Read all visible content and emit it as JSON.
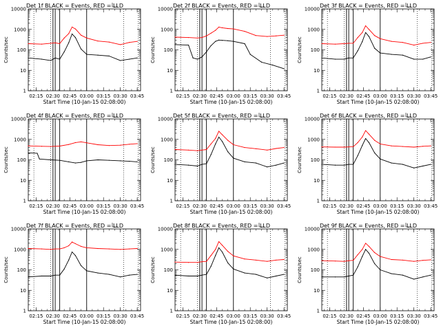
{
  "chart_data": [
    {
      "type": "line",
      "title": "Det 1f BLACK = Events, RED = LLD",
      "xlabel": "Start Time (10-Jan-15 02:08:00)",
      "ylabel": "Counts/sec",
      "yscale": "log",
      "ylim": [
        1,
        10000
      ],
      "xlim": [
        "02:08",
        "03:48"
      ],
      "ytick_labels": [
        "1",
        "10",
        "100",
        "1000",
        "10000"
      ],
      "xtick_labels": [
        "02:15",
        "02:30",
        "02:45",
        "03:00",
        "03:15",
        "03:30",
        "03:45"
      ],
      "dotted_lines": [
        "02:13",
        "02:28",
        "03:33",
        "03:46"
      ],
      "solid_lines": [
        "02:30",
        "02:32",
        "02:36",
        "03:00"
      ],
      "series": [
        {
          "color": "#ff0000",
          "x": [
            "02:08",
            "02:20",
            "02:28",
            "02:32",
            "02:36",
            "02:40",
            "02:44",
            "02:47",
            "02:50",
            "02:55",
            "03:00",
            "03:10",
            "03:20",
            "03:30",
            "03:38",
            "03:45"
          ],
          "y": [
            200,
            190,
            210,
            220,
            200,
            380,
            620,
            1300,
            1050,
            520,
            380,
            270,
            240,
            180,
            230,
            260
          ]
        },
        {
          "color": "#000000",
          "x": [
            "02:08",
            "02:20",
            "02:28",
            "02:32",
            "02:36",
            "02:40",
            "02:44",
            "02:47",
            "02:50",
            "02:55",
            "03:00",
            "03:10",
            "03:20",
            "03:30",
            "03:38",
            "03:45"
          ],
          "y": [
            40,
            35,
            30,
            40,
            35,
            80,
            220,
            600,
            400,
            110,
            60,
            55,
            50,
            30,
            35,
            40
          ]
        }
      ]
    },
    {
      "type": "line",
      "title": "Det 2f BLACK = Events, RED = LLD",
      "xlabel": "Start Time (10-Jan-15 02:08:00)",
      "ylabel": "Counts/sec",
      "yscale": "log",
      "ylim": [
        1,
        10000
      ],
      "xlim": [
        "02:08",
        "03:48"
      ],
      "ytick_labels": [
        "1",
        "10",
        "100",
        "1000",
        "10000"
      ],
      "xtick_labels": [
        "02:15",
        "02:30",
        "02:45",
        "03:00",
        "03:15",
        "03:30",
        "03:45"
      ],
      "dotted_lines": [
        "02:13",
        "02:28",
        "03:33",
        "03:46"
      ],
      "solid_lines": [
        "02:30",
        "02:32",
        "02:36",
        "03:00"
      ],
      "series": [
        {
          "color": "#ff0000",
          "x": [
            "02:08",
            "02:20",
            "02:28",
            "02:32",
            "02:36",
            "02:40",
            "02:44",
            "02:47",
            "02:50",
            "02:55",
            "03:00",
            "03:10",
            "03:20",
            "03:30",
            "03:38",
            "03:45"
          ],
          "y": [
            420,
            400,
            380,
            400,
            480,
            650,
            900,
            1300,
            1200,
            1100,
            1050,
            800,
            500,
            450,
            480,
            520
          ]
        },
        {
          "color": "#000000",
          "x": [
            "02:08",
            "02:20",
            "02:24",
            "02:28",
            "02:32",
            "02:36",
            "02:40",
            "02:44",
            "02:47",
            "02:50",
            "02:55",
            "03:00",
            "03:10",
            "03:15",
            "03:25",
            "03:35",
            "03:45"
          ],
          "y": [
            180,
            170,
            40,
            35,
            45,
            80,
            160,
            260,
            300,
            290,
            280,
            260,
            200,
            60,
            25,
            18,
            12
          ]
        }
      ]
    },
    {
      "type": "line",
      "title": "Det 3f BLACK = Events, RED = LLD",
      "xlabel": "Start Time (10-Jan-15 02:08:00)",
      "ylabel": "Counts/sec",
      "yscale": "log",
      "ylim": [
        1,
        10000
      ],
      "xlim": [
        "02:08",
        "03:48"
      ],
      "ytick_labels": [
        "1",
        "10",
        "100",
        "1000",
        "10000"
      ],
      "xtick_labels": [
        "02:15",
        "02:30",
        "02:45",
        "03:00",
        "03:15",
        "03:30",
        "03:45"
      ],
      "dotted_lines": [
        "02:13",
        "02:28",
        "03:33",
        "03:46"
      ],
      "solid_lines": [
        "02:30",
        "02:32",
        "02:36",
        "03:00"
      ],
      "series": [
        {
          "color": "#ff0000",
          "x": [
            "02:08",
            "02:20",
            "02:28",
            "02:32",
            "02:36",
            "02:40",
            "02:44",
            "02:47",
            "02:50",
            "02:55",
            "03:00",
            "03:10",
            "03:20",
            "03:30",
            "03:38",
            "03:45"
          ],
          "y": [
            200,
            190,
            200,
            210,
            210,
            400,
            700,
            1500,
            1000,
            500,
            350,
            260,
            230,
            170,
            210,
            230
          ]
        },
        {
          "color": "#000000",
          "x": [
            "02:08",
            "02:20",
            "02:28",
            "02:32",
            "02:36",
            "02:40",
            "02:44",
            "02:47",
            "02:50",
            "02:55",
            "03:00",
            "03:10",
            "03:20",
            "03:30",
            "03:38",
            "03:45"
          ],
          "y": [
            40,
            35,
            35,
            40,
            40,
            90,
            250,
            700,
            450,
            120,
            70,
            60,
            55,
            35,
            35,
            45
          ]
        }
      ]
    },
    {
      "type": "line",
      "title": "Det 4f BLACK = Events, RED = LLD",
      "xlabel": "Start Time (10-Jan-15 02:08:00)",
      "ylabel": "Counts/sec",
      "yscale": "log",
      "ylim": [
        1,
        10000
      ],
      "xlim": [
        "02:08",
        "03:48"
      ],
      "ytick_labels": [
        "1",
        "10",
        "100",
        "1000",
        "10000"
      ],
      "xtick_labels": [
        "02:15",
        "02:30",
        "02:45",
        "03:00",
        "03:15",
        "03:30",
        "03:45"
      ],
      "dotted_lines": [
        "02:13",
        "02:28",
        "03:33",
        "03:46"
      ],
      "solid_lines": [
        "02:30",
        "02:32",
        "02:36",
        "03:00"
      ],
      "series": [
        {
          "color": "#ff0000",
          "x": [
            "02:08",
            "02:20",
            "02:28",
            "02:36",
            "02:44",
            "02:50",
            "02:55",
            "03:00",
            "03:10",
            "03:20",
            "03:30",
            "03:38",
            "03:45"
          ],
          "y": [
            480,
            460,
            450,
            470,
            560,
            700,
            760,
            680,
            550,
            500,
            520,
            580,
            620
          ]
        },
        {
          "color": "#000000",
          "x": [
            "02:08",
            "02:16",
            "02:18",
            "02:28",
            "02:36",
            "02:44",
            "02:50",
            "02:55",
            "03:00",
            "03:10",
            "03:20",
            "03:30",
            "03:38",
            "03:45"
          ],
          "y": [
            220,
            210,
            110,
            100,
            95,
            80,
            70,
            75,
            90,
            100,
            95,
            90,
            85,
            80
          ]
        }
      ]
    },
    {
      "type": "line",
      "title": "Det 5f BLACK = Events, RED = LLD",
      "xlabel": "Start Time (10-Jan-15 02:08:00)",
      "ylabel": "Counts/sec",
      "yscale": "log",
      "ylim": [
        1,
        10000
      ],
      "xlim": [
        "02:08",
        "03:48"
      ],
      "ytick_labels": [
        "1",
        "10",
        "100",
        "1000",
        "10000"
      ],
      "xtick_labels": [
        "02:15",
        "02:30",
        "02:45",
        "03:00",
        "03:15",
        "03:30",
        "03:45"
      ],
      "dotted_lines": [
        "02:13",
        "02:28",
        "03:33",
        "03:46"
      ],
      "solid_lines": [
        "02:30",
        "02:32",
        "02:36",
        "03:00"
      ],
      "series": [
        {
          "color": "#ff0000",
          "x": [
            "02:08",
            "02:20",
            "02:28",
            "02:32",
            "02:36",
            "02:40",
            "02:44",
            "02:47",
            "02:50",
            "02:55",
            "03:00",
            "03:10",
            "03:20",
            "03:30",
            "03:38",
            "03:45"
          ],
          "y": [
            320,
            300,
            280,
            300,
            320,
            600,
            1100,
            2500,
            1700,
            900,
            550,
            400,
            350,
            300,
            360,
            400
          ]
        },
        {
          "color": "#000000",
          "x": [
            "02:08",
            "02:20",
            "02:28",
            "02:32",
            "02:36",
            "02:40",
            "02:44",
            "02:47",
            "02:50",
            "02:55",
            "03:00",
            "03:10",
            "03:20",
            "03:30",
            "03:38",
            "03:45"
          ],
          "y": [
            60,
            55,
            50,
            60,
            65,
            180,
            600,
            1300,
            800,
            250,
            120,
            80,
            70,
            45,
            55,
            70
          ]
        }
      ]
    },
    {
      "type": "line",
      "title": "Det 6f BLACK = Events, RED = LLD",
      "xlabel": "Start Time (10-Jan-15 02:08:00)",
      "ylabel": "Counts/sec",
      "yscale": "log",
      "ylim": [
        1,
        10000
      ],
      "xlim": [
        "02:08",
        "03:48"
      ],
      "ytick_labels": [
        "1",
        "10",
        "100",
        "1000",
        "10000"
      ],
      "xtick_labels": [
        "02:15",
        "02:30",
        "02:45",
        "03:00",
        "03:15",
        "03:30",
        "03:45"
      ],
      "dotted_lines": [
        "02:13",
        "02:28",
        "03:33",
        "03:46"
      ],
      "solid_lines": [
        "02:30",
        "02:32",
        "02:36",
        "03:00"
      ],
      "series": [
        {
          "color": "#ff0000",
          "x": [
            "02:08",
            "02:20",
            "02:28",
            "02:32",
            "02:36",
            "02:40",
            "02:44",
            "02:47",
            "02:50",
            "02:55",
            "03:00",
            "03:10",
            "03:20",
            "03:30",
            "03:38",
            "03:45"
          ],
          "y": [
            430,
            420,
            420,
            430,
            440,
            700,
            1300,
            2700,
            1800,
            900,
            600,
            480,
            450,
            420,
            460,
            480
          ]
        },
        {
          "color": "#000000",
          "x": [
            "02:08",
            "02:20",
            "02:28",
            "02:32",
            "02:36",
            "02:40",
            "02:44",
            "02:47",
            "02:50",
            "02:55",
            "03:00",
            "03:10",
            "03:20",
            "03:30",
            "03:38",
            "03:45"
          ],
          "y": [
            60,
            55,
            55,
            60,
            60,
            160,
            500,
            1100,
            700,
            220,
            110,
            70,
            60,
            40,
            50,
            60
          ]
        }
      ]
    },
    {
      "type": "line",
      "title": "Det 7f BLACK = Events, RED = LLD",
      "xlabel": "Start Time (10-Jan-15 02:08:00)",
      "ylabel": "Counts/sec",
      "yscale": "log",
      "ylim": [
        1,
        10000
      ],
      "xlim": [
        "02:08",
        "03:48"
      ],
      "ytick_labels": [
        "1",
        "10",
        "100",
        "1000",
        "10000"
      ],
      "xtick_labels": [
        "02:15",
        "02:30",
        "02:45",
        "03:00",
        "03:15",
        "03:30",
        "03:45"
      ],
      "dotted_lines": [
        "02:13",
        "02:28",
        "03:33",
        "03:46"
      ],
      "solid_lines": [
        "02:30",
        "02:32",
        "02:36",
        "03:00"
      ],
      "series": [
        {
          "color": "#ff0000",
          "x": [
            "02:08",
            "02:20",
            "02:28",
            "02:32",
            "02:36",
            "02:40",
            "02:44",
            "02:47",
            "02:50",
            "02:55",
            "03:00",
            "03:10",
            "03:20",
            "03:30",
            "03:38",
            "03:45"
          ],
          "y": [
            1100,
            1050,
            1000,
            1050,
            1050,
            1200,
            1500,
            2300,
            1900,
            1400,
            1200,
            1100,
            1050,
            1000,
            1050,
            1100
          ]
        },
        {
          "color": "#000000",
          "x": [
            "02:08",
            "02:20",
            "02:28",
            "02:32",
            "02:36",
            "02:40",
            "02:44",
            "02:47",
            "02:50",
            "02:55",
            "03:00",
            "03:10",
            "03:20",
            "03:30",
            "03:38",
            "03:45"
          ],
          "y": [
            45,
            50,
            50,
            55,
            55,
            110,
            300,
            750,
            500,
            160,
            90,
            70,
            60,
            45,
            55,
            60
          ]
        }
      ]
    },
    {
      "type": "line",
      "title": "Det 8f BLACK = Events, RED = LLD",
      "xlabel": "Start Time (10-Jan-15 02:08:00)",
      "ylabel": "Counts/sec",
      "yscale": "log",
      "ylim": [
        1,
        10000
      ],
      "xlim": [
        "02:08",
        "03:48"
      ],
      "ytick_labels": [
        "1",
        "10",
        "100",
        "1000",
        "10000"
      ],
      "xtick_labels": [
        "02:15",
        "02:30",
        "02:45",
        "03:00",
        "03:15",
        "03:30",
        "03:45"
      ],
      "dotted_lines": [
        "02:13",
        "02:28",
        "03:33",
        "03:46"
      ],
      "solid_lines": [
        "02:30",
        "02:32",
        "02:36",
        "03:00"
      ],
      "series": [
        {
          "color": "#ff0000",
          "x": [
            "02:08",
            "02:20",
            "02:28",
            "02:32",
            "02:36",
            "02:40",
            "02:44",
            "02:47",
            "02:50",
            "02:55",
            "03:00",
            "03:10",
            "03:20",
            "03:30",
            "03:38",
            "03:45"
          ],
          "y": [
            240,
            230,
            230,
            250,
            260,
            500,
            1000,
            2400,
            1600,
            800,
            480,
            340,
            300,
            260,
            300,
            320
          ]
        },
        {
          "color": "#000000",
          "x": [
            "02:08",
            "02:20",
            "02:28",
            "02:32",
            "02:36",
            "02:40",
            "02:44",
            "02:47",
            "02:50",
            "02:55",
            "03:00",
            "03:10",
            "03:20",
            "03:30",
            "03:38",
            "03:45"
          ],
          "y": [
            55,
            50,
            50,
            55,
            60,
            150,
            500,
            1200,
            750,
            220,
            110,
            70,
            60,
            40,
            50,
            60
          ]
        }
      ]
    },
    {
      "type": "line",
      "title": "Det 9f BLACK = Events, RED = LLD",
      "xlabel": "Start Time (10-Jan-15 02:08:00)",
      "ylabel": "Counts/sec",
      "yscale": "log",
      "ylim": [
        1,
        10000
      ],
      "xlim": [
        "02:08",
        "03:48"
      ],
      "ytick_labels": [
        "1",
        "10",
        "100",
        "1000",
        "10000"
      ],
      "xtick_labels": [
        "02:15",
        "02:30",
        "02:45",
        "03:00",
        "03:15",
        "03:30",
        "03:45"
      ],
      "dotted_lines": [
        "02:13",
        "02:28",
        "03:33",
        "03:46"
      ],
      "solid_lines": [
        "02:30",
        "02:32",
        "02:36",
        "03:00"
      ],
      "series": [
        {
          "color": "#ff0000",
          "x": [
            "02:08",
            "02:20",
            "02:28",
            "02:32",
            "02:36",
            "02:40",
            "02:44",
            "02:47",
            "02:50",
            "02:55",
            "03:00",
            "03:10",
            "03:20",
            "03:30",
            "03:38",
            "03:45"
          ],
          "y": [
            280,
            270,
            260,
            280,
            290,
            550,
            1000,
            2000,
            1400,
            700,
            450,
            320,
            300,
            260,
            290,
            310
          ]
        },
        {
          "color": "#000000",
          "x": [
            "02:08",
            "02:20",
            "02:28",
            "02:32",
            "02:36",
            "02:40",
            "02:44",
            "02:47",
            "02:50",
            "02:55",
            "03:00",
            "03:10",
            "03:20",
            "03:30",
            "03:38",
            "03:45"
          ],
          "y": [
            45,
            45,
            45,
            50,
            55,
            140,
            450,
            1000,
            650,
            200,
            100,
            65,
            55,
            35,
            45,
            55
          ]
        }
      ]
    }
  ]
}
